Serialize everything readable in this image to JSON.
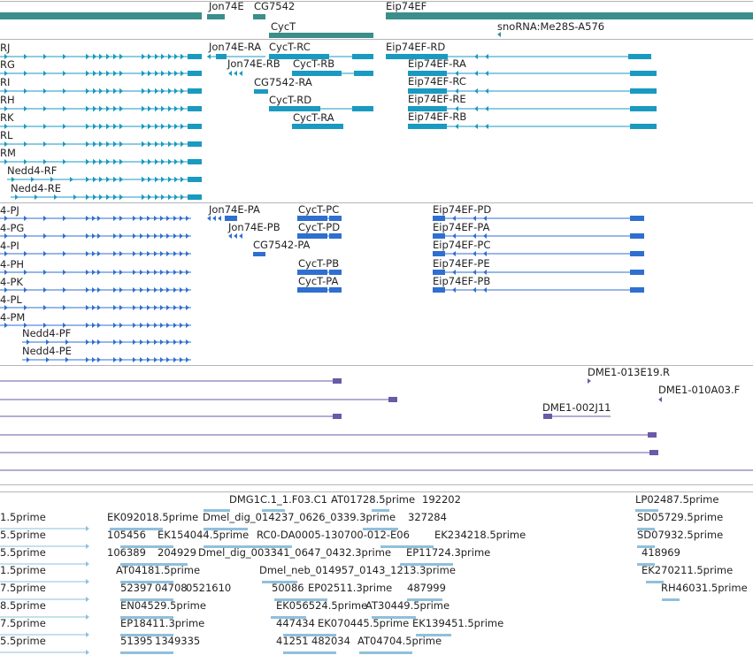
{
  "colors": {
    "gene": "#3b8e8a",
    "mrna": "#1a9ac0",
    "protein": "#2f6fd0",
    "clone": "#6a5aa8",
    "est": "#8fc0dc",
    "separator": "#b5b5b5"
  },
  "gene_track": {
    "features": [
      {
        "label": "Jon74E",
        "lane": 0,
        "strand": "-"
      },
      {
        "label": "CG7542",
        "lane": 0,
        "strand": "+"
      },
      {
        "label": "Eip74EF",
        "lane": 0,
        "strand": "+"
      },
      {
        "label": "CycT",
        "lane": 1,
        "strand": "-"
      },
      {
        "label": "snoRNA:Me28S-A576",
        "lane": 1,
        "strand": "-"
      }
    ]
  },
  "mrna_track": {
    "features": [
      {
        "label": "RJ"
      },
      {
        "label": "RG"
      },
      {
        "label": "RI"
      },
      {
        "label": "RH"
      },
      {
        "label": "RK"
      },
      {
        "label": "RL"
      },
      {
        "label": "RM"
      },
      {
        "label": "Nedd4-RF"
      },
      {
        "label": "Nedd4-RE"
      },
      {
        "label": "Jon74E-RA"
      },
      {
        "label": "Jon74E-RB"
      },
      {
        "label": "CycT-RC"
      },
      {
        "label": "CycT-RB"
      },
      {
        "label": "CG7542-RA"
      },
      {
        "label": "CycT-RD"
      },
      {
        "label": "CycT-RA"
      },
      {
        "label": "Eip74EF-RD"
      },
      {
        "label": "Eip74EF-RA"
      },
      {
        "label": "Eip74EF-RC"
      },
      {
        "label": "Eip74EF-RE"
      },
      {
        "label": "Eip74EF-RB"
      }
    ]
  },
  "protein_track": {
    "features": [
      {
        "label": "4-PJ"
      },
      {
        "label": "4-PG"
      },
      {
        "label": "4-PI"
      },
      {
        "label": "4-PH"
      },
      {
        "label": "4-PK"
      },
      {
        "label": "4-PL"
      },
      {
        "label": "4-PM"
      },
      {
        "label": "Nedd4-PF"
      },
      {
        "label": "Nedd4-PE"
      },
      {
        "label": "Jon74E-PA"
      },
      {
        "label": "Jon74E-PB"
      },
      {
        "label": "CG7542-PA"
      },
      {
        "label": "CycT-PC"
      },
      {
        "label": "CycT-PD"
      },
      {
        "label": "CycT-PB"
      },
      {
        "label": "CycT-PA"
      },
      {
        "label": "Eip74EF-PD"
      },
      {
        "label": "Eip74EF-PA"
      },
      {
        "label": "Eip74EF-PC"
      },
      {
        "label": "Eip74EF-PE"
      },
      {
        "label": "Eip74EF-PB"
      }
    ]
  },
  "clone_track": {
    "features": [
      {
        "label": "DME1-013E19.R"
      },
      {
        "label": "DME1-010A03.F"
      },
      {
        "label": "DME1-002J11"
      }
    ]
  },
  "est_track": {
    "features": [
      {
        "label": "DMG1C.1_1.F03.C1"
      },
      {
        "label": "AT01728.5prime"
      },
      {
        "label": "192202"
      },
      {
        "label": "LP02487.5prime"
      },
      {
        "label": "1.5prime"
      },
      {
        "label": "EK092018.5prime"
      },
      {
        "label": "Dmel_dig_014237_0626_0339.3prime"
      },
      {
        "label": "327284"
      },
      {
        "label": "SD05729.5prime"
      },
      {
        "label": "5.5prime"
      },
      {
        "label": "105456"
      },
      {
        "label": "EK154044.5prime"
      },
      {
        "label": "RC0-DA0005-130700-012-E06"
      },
      {
        "label": "EK234218.5prime"
      },
      {
        "label": "SD07932.5prime"
      },
      {
        "label": "5.5prime"
      },
      {
        "label": "106389"
      },
      {
        "label": "204929"
      },
      {
        "label": "Dmel_dig_003341_0647_0432.3prime"
      },
      {
        "label": "EP11724.3prime"
      },
      {
        "label": "418969"
      },
      {
        "label": "1.5prime"
      },
      {
        "label": "AT04181.5prime"
      },
      {
        "label": "Dmel_neb_014957_0143_1213.3prime"
      },
      {
        "label": "EK270211.5prime"
      },
      {
        "label": "7.5prime"
      },
      {
        "label": "52397"
      },
      {
        "label": "04708"
      },
      {
        "label": "0521610"
      },
      {
        "label": "50086"
      },
      {
        "label": "EP02511.3prime"
      },
      {
        "label": "487999"
      },
      {
        "label": "RH46031.5prime"
      },
      {
        "label": "8.5prime"
      },
      {
        "label": "EN04529.5prime"
      },
      {
        "label": "EK056524.5prime"
      },
      {
        "label": "AT30449.5prime"
      },
      {
        "label": "7.5prime"
      },
      {
        "label": "EP18411.3prime"
      },
      {
        "label": "447434"
      },
      {
        "label": "EK070445.5prime"
      },
      {
        "label": "EK139451.5prime"
      },
      {
        "label": "5.5prime"
      },
      {
        "label": "51395"
      },
      {
        "label": "1349335"
      },
      {
        "label": "41251"
      },
      {
        "label": "482034"
      },
      {
        "label": "AT04704.5prime"
      }
    ]
  }
}
